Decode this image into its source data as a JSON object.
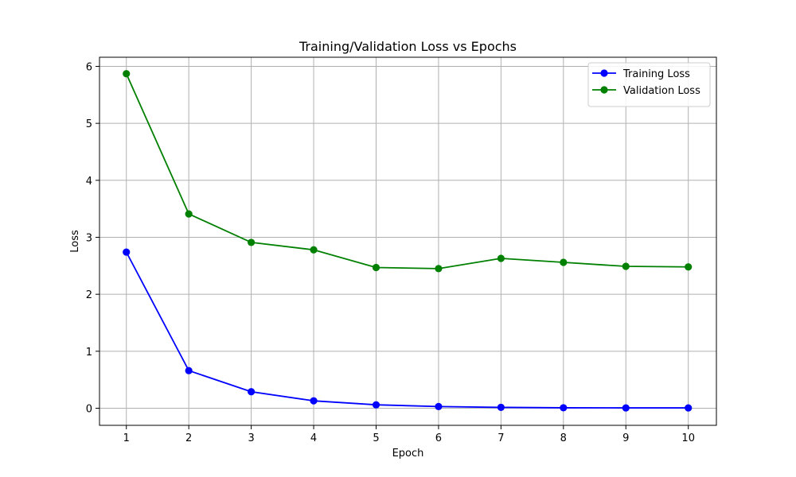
{
  "chart_data": {
    "type": "line",
    "title": "Training/Validation Loss vs Epochs",
    "xlabel": "Epoch",
    "ylabel": "Loss",
    "x": [
      1,
      2,
      3,
      4,
      5,
      6,
      7,
      8,
      9,
      10
    ],
    "xticks": [
      1,
      2,
      3,
      4,
      5,
      6,
      7,
      8,
      9,
      10
    ],
    "yticks": [
      0,
      1,
      2,
      3,
      4,
      5,
      6
    ],
    "xlim": [
      0.57,
      10.45
    ],
    "ylim": [
      -0.3,
      6.16
    ],
    "grid": true,
    "legend": "top-right",
    "series": [
      {
        "name": "Training Loss",
        "color": "#0000ff",
        "values": [
          2.74,
          0.66,
          0.29,
          0.13,
          0.06,
          0.03,
          0.015,
          0.008,
          0.006,
          0.006
        ]
      },
      {
        "name": "Validation Loss",
        "color": "#008000",
        "values": [
          5.87,
          3.41,
          2.91,
          2.78,
          2.47,
          2.45,
          2.63,
          2.56,
          2.49,
          2.48
        ]
      }
    ]
  }
}
